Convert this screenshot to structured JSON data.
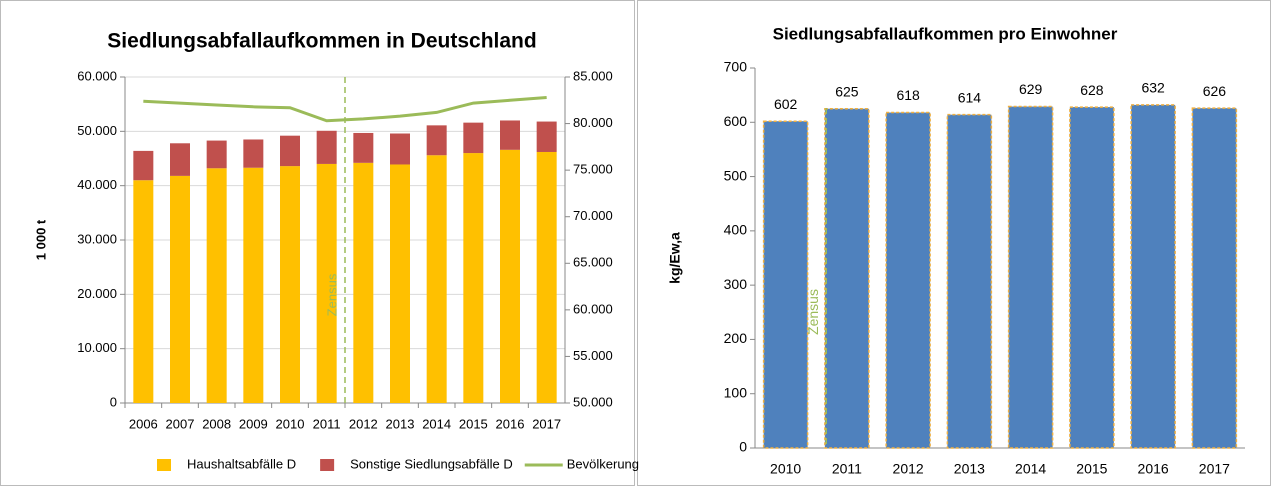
{
  "chart_data": [
    {
      "type": "bar",
      "stacked": true,
      "title": "Siedlungsabfallaufkommen in Deutschland",
      "ylabel": "1 000 t",
      "annotation": "Zensus",
      "grid": true,
      "legend": "bottom",
      "categories": [
        "2006",
        "2007",
        "2008",
        "2009",
        "2010",
        "2011",
        "2012",
        "2013",
        "2014",
        "2015",
        "2016",
        "2017"
      ],
      "series": [
        {
          "name": "Haushaltsabfälle D",
          "color": "#ffc000",
          "values": [
            41000,
            41800,
            43200,
            43300,
            43600,
            44000,
            44200,
            43900,
            45600,
            46000,
            46600,
            46200
          ]
        },
        {
          "name": "Sonstige Siedlungsabfälle D",
          "color": "#c0504d",
          "values": [
            5400,
            6000,
            5100,
            5200,
            5600,
            6100,
            5500,
            5700,
            5500,
            5600,
            5400,
            5600
          ]
        },
        {
          "name": "Bevölkerung",
          "color": "#9bbb59",
          "type": "line",
          "axis": "y2",
          "values": [
            82400,
            82200,
            82000,
            81800,
            81700,
            80300,
            80500,
            80800,
            81200,
            82200,
            82500,
            82800
          ]
        }
      ],
      "ylim": [
        0,
        60000
      ],
      "yticks": [
        0,
        {
          "value": 10000,
          "label": "10.000"
        },
        {
          "value": 20000,
          "label": "20.000"
        },
        {
          "value": 30000,
          "label": "30.000"
        },
        {
          "value": 40000,
          "label": "40.000"
        },
        {
          "value": 50000,
          "label": "50.000"
        },
        {
          "value": 60000,
          "label": "60.000"
        }
      ],
      "y2lim": [
        50000,
        85000
      ],
      "y2ticks": [
        {
          "value": 50000,
          "label": "50.000"
        },
        {
          "value": 55000,
          "label": "55.000"
        },
        {
          "value": 60000,
          "label": "60.000"
        },
        {
          "value": 65000,
          "label": "65.000"
        },
        {
          "value": 70000,
          "label": "70.000"
        },
        {
          "value": 75000,
          "label": "75.000"
        },
        {
          "value": 80000,
          "label": "80.000"
        },
        {
          "value": 85000,
          "label": "85.000"
        }
      ]
    },
    {
      "type": "bar",
      "title": "Siedlungsabfallaufkommen  pro Einwohner",
      "ylabel": "kg/Ew,a",
      "annotation": "Zensus",
      "grid": false,
      "categories": [
        "2010",
        "2011",
        "2012",
        "2013",
        "2014",
        "2015",
        "2016",
        "2017"
      ],
      "values": [
        602,
        625,
        618,
        614,
        629,
        628,
        632,
        626
      ],
      "color": "#4f81bd",
      "edgecolor": "#f0b040",
      "ylim": [
        0,
        700
      ],
      "yticks": [
        0,
        100,
        200,
        300,
        400,
        500,
        600,
        700
      ]
    }
  ]
}
